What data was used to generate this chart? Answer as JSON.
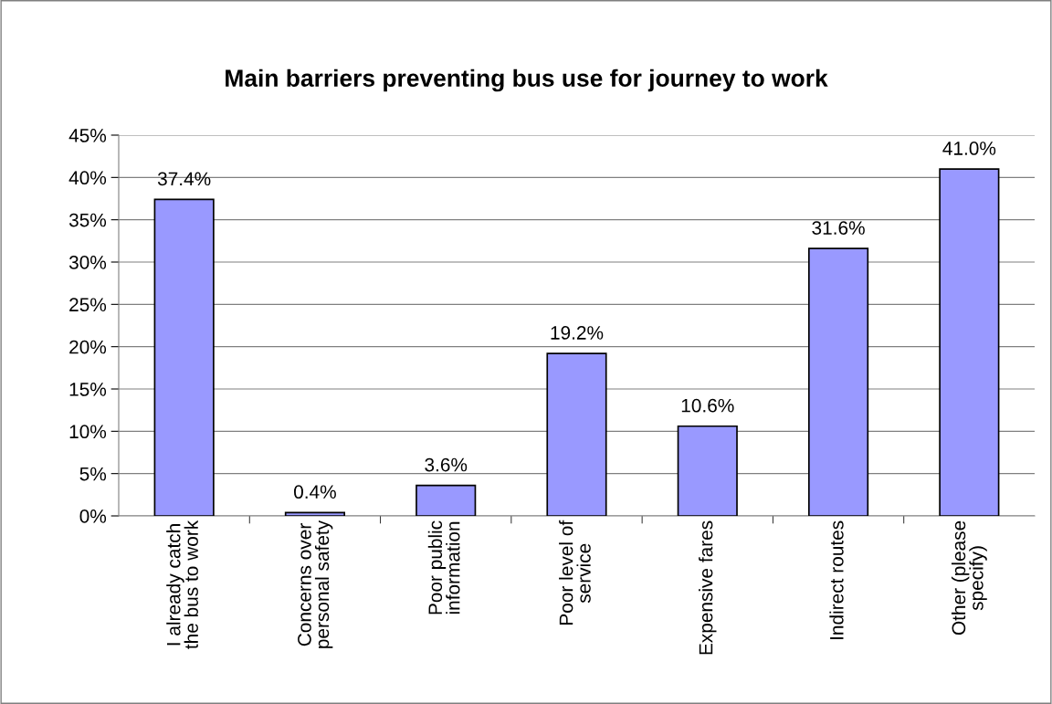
{
  "chart_data": {
    "type": "bar",
    "title": "Main barriers preventing bus use for journey to work",
    "categories": [
      "I already catch\nthe bus to work",
      "Concerns over\npersonal safety",
      "Poor public\ninformation",
      "Poor level of\nservice",
      "Expensive fares",
      "Indirect routes",
      "Other (please\nspecify)"
    ],
    "values": [
      37.4,
      0.4,
      3.6,
      19.2,
      10.6,
      31.6,
      41.0
    ],
    "value_labels": [
      "37.4%",
      "0.4%",
      "3.6%",
      "19.2%",
      "10.6%",
      "31.6%",
      "41.0%"
    ],
    "color": "#9999ff",
    "ylim": [
      0,
      45
    ],
    "yticks": [
      {
        "value": 0,
        "label": "0%"
      },
      {
        "value": 5,
        "label": "5%"
      },
      {
        "value": 10,
        "label": "10%"
      },
      {
        "value": 15,
        "label": "15%"
      },
      {
        "value": 20,
        "label": "20%"
      },
      {
        "value": 25,
        "label": "25%"
      },
      {
        "value": 30,
        "label": "30%"
      },
      {
        "value": 35,
        "label": "35%"
      },
      {
        "value": 40,
        "label": "40%"
      },
      {
        "value": 45,
        "label": "45%"
      }
    ],
    "grid": "y",
    "legend": false
  }
}
